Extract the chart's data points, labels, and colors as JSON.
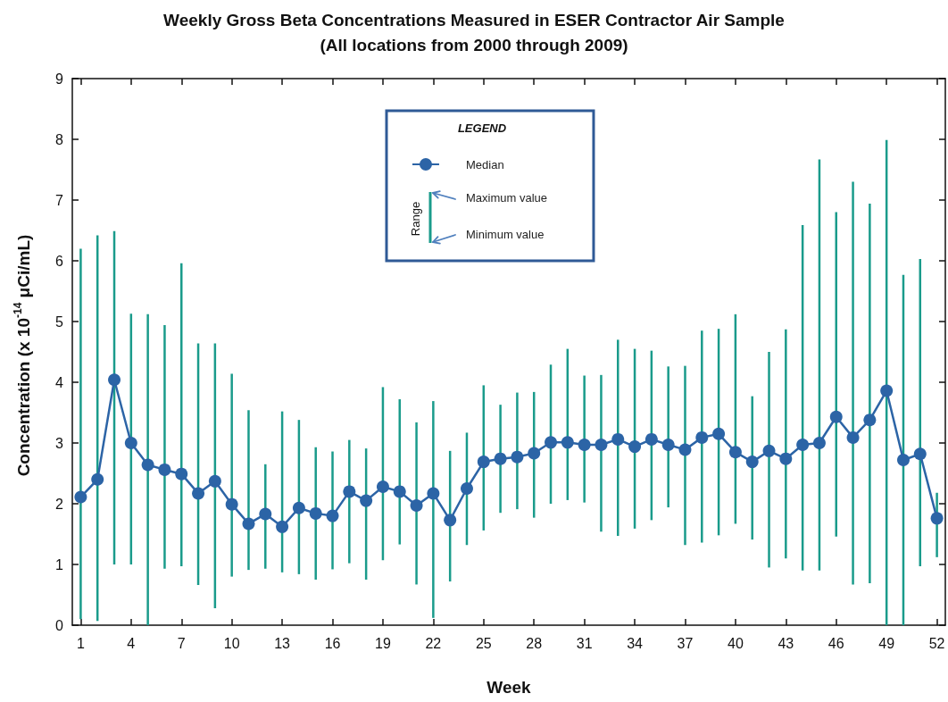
{
  "chart_data": {
    "type": "line",
    "title": "Weekly Gross Beta Concentrations Measured in ESER Contractor Air Sample",
    "subtitle": "(All locations from 2000 through 2009)",
    "xlabel": "Week",
    "ylabel": "Concentration (x 10$^{-14}$ μCi/mL)",
    "legend_title": "LEGEND",
    "annotations": [
      "Range",
      "Maximum value",
      "Minimum value"
    ],
    "x": [
      1,
      2,
      3,
      4,
      5,
      6,
      7,
      8,
      9,
      10,
      11,
      12,
      13,
      14,
      15,
      16,
      17,
      18,
      19,
      20,
      21,
      22,
      23,
      24,
      25,
      26,
      27,
      28,
      29,
      30,
      31,
      32,
      33,
      34,
      35,
      36,
      37,
      38,
      39,
      40,
      41,
      42,
      43,
      44,
      45,
      46,
      47,
      48,
      49,
      50,
      51,
      52
    ],
    "series": [
      {
        "name": "Median",
        "color": "#2c64a6",
        "values": [
          2.11,
          2.4,
          4.04,
          3.0,
          2.64,
          2.56,
          2.49,
          2.17,
          2.37,
          1.99,
          1.67,
          1.83,
          1.62,
          1.93,
          1.84,
          1.8,
          2.2,
          2.05,
          2.28,
          2.2,
          1.97,
          2.17,
          1.73,
          2.25,
          2.69,
          2.74,
          2.77,
          2.83,
          3.01,
          3.01,
          2.97,
          2.97,
          3.06,
          2.94,
          3.06,
          2.97,
          2.89,
          3.09,
          3.15,
          2.85,
          2.69,
          2.87,
          2.74,
          2.97,
          3.0,
          3.43,
          3.09,
          3.38,
          3.86,
          2.72,
          2.82,
          1.76
        ],
        "errors": [
          [
            0.1,
            6.2
          ],
          [
            0.07,
            6.42
          ],
          [
            1.0,
            6.49
          ],
          [
            1.0,
            5.13
          ],
          [
            0,
            5.12
          ],
          [
            0.93,
            4.94
          ],
          [
            0.97,
            5.96
          ],
          [
            0.66,
            4.64
          ],
          [
            0.28,
            4.64
          ],
          [
            0.8,
            4.14
          ],
          [
            0.91,
            3.54
          ],
          [
            0.93,
            2.65
          ],
          [
            0.87,
            3.52
          ],
          [
            0.84,
            3.38
          ],
          [
            0.75,
            2.93
          ],
          [
            0.92,
            2.86
          ],
          [
            1.02,
            3.05
          ],
          [
            0.75,
            2.91
          ],
          [
            1.07,
            3.92
          ],
          [
            1.33,
            3.72
          ],
          [
            0.67,
            3.34
          ],
          [
            0.12,
            3.69
          ],
          [
            0.72,
            2.87
          ],
          [
            1.32,
            3.17
          ],
          [
            1.56,
            3.95
          ],
          [
            1.85,
            3.63
          ],
          [
            1.91,
            3.83
          ],
          [
            1.77,
            3.84
          ],
          [
            2.0,
            4.29
          ],
          [
            2.06,
            4.55
          ],
          [
            2.02,
            4.11
          ],
          [
            1.54,
            4.12
          ],
          [
            1.47,
            4.7
          ],
          [
            1.59,
            4.55
          ],
          [
            1.73,
            4.52
          ],
          [
            1.94,
            4.26
          ],
          [
            1.32,
            4.27
          ],
          [
            1.36,
            4.85
          ],
          [
            1.48,
            4.88
          ],
          [
            1.67,
            5.12
          ],
          [
            1.41,
            3.77
          ],
          [
            0.95,
            4.5
          ],
          [
            1.1,
            4.87
          ],
          [
            0.9,
            6.59
          ],
          [
            0.9,
            7.67
          ],
          [
            1.46,
            6.8
          ],
          [
            0.67,
            7.3
          ],
          [
            0.69,
            6.94
          ],
          [
            0,
            7.99
          ],
          [
            0,
            5.77
          ],
          [
            0.97,
            6.03
          ],
          [
            1.12,
            2.18
          ]
        ]
      }
    ],
    "xlim": [
      0.5,
      52.5
    ],
    "xticks": [
      1,
      4,
      7,
      10,
      13,
      16,
      19,
      22,
      25,
      28,
      31,
      34,
      37,
      40,
      43,
      46,
      49,
      52
    ],
    "ylim": [
      0,
      9
    ],
    "yticks": [
      0,
      1,
      2,
      3,
      4,
      5,
      6,
      7,
      8,
      9
    ],
    "legend": "top",
    "marker": "circle",
    "line_style": "solid"
  }
}
